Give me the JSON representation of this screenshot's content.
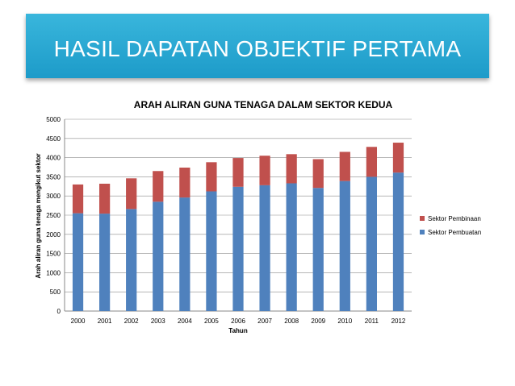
{
  "slide": {
    "title": "HASIL DAPATAN OBJEKTIF PERTAMA"
  },
  "colors": {
    "banner": "#2aa9d6",
    "pembuatan": "#4f81bd",
    "pembinaan": "#c0504d"
  },
  "chart_data": {
    "type": "bar",
    "stacked": true,
    "title": "ARAH ALIRAN GUNA TENAGA DALAM SEKTOR KEDUA",
    "xlabel": "Tahun",
    "ylabel": "Arah aliran guna tenaga mengikut sektor",
    "categories": [
      "2000",
      "2001",
      "2002",
      "2003",
      "2004",
      "2005",
      "2006",
      "2007",
      "2008",
      "2009",
      "2010",
      "2011",
      "2012"
    ],
    "series": [
      {
        "name": "Sektor Pembuatan",
        "color": "#4f81bd",
        "values": [
          2550,
          2540,
          2660,
          2850,
          2960,
          3120,
          3240,
          3280,
          3330,
          3210,
          3390,
          3500,
          3610
        ]
      },
      {
        "name": "Sektor Pembinaan",
        "color": "#c0504d",
        "values": [
          750,
          780,
          800,
          800,
          780,
          760,
          750,
          770,
          760,
          750,
          760,
          780,
          780
        ]
      }
    ],
    "ylim": [
      0,
      5000
    ],
    "yticks": [
      0,
      500,
      1000,
      1500,
      2000,
      2500,
      3000,
      3500,
      4000,
      4500,
      5000
    ],
    "grid": true,
    "legend": "right"
  }
}
